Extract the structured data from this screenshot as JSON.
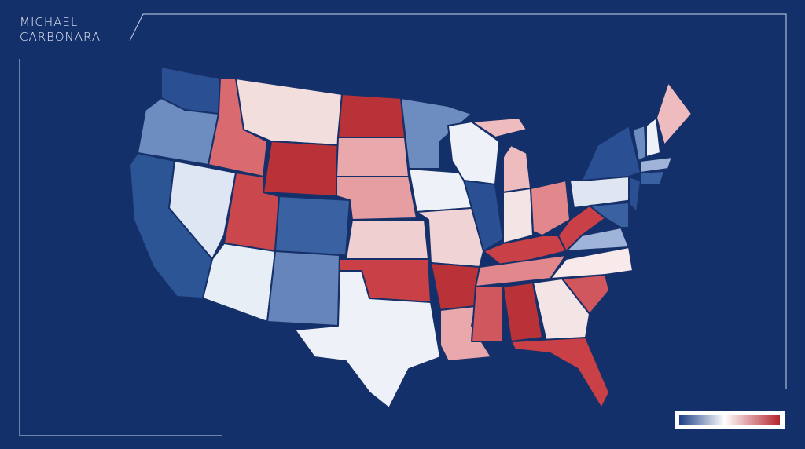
{
  "brand": {
    "line1": "MICHAEL",
    "line2": "CARBONARA"
  }
}
